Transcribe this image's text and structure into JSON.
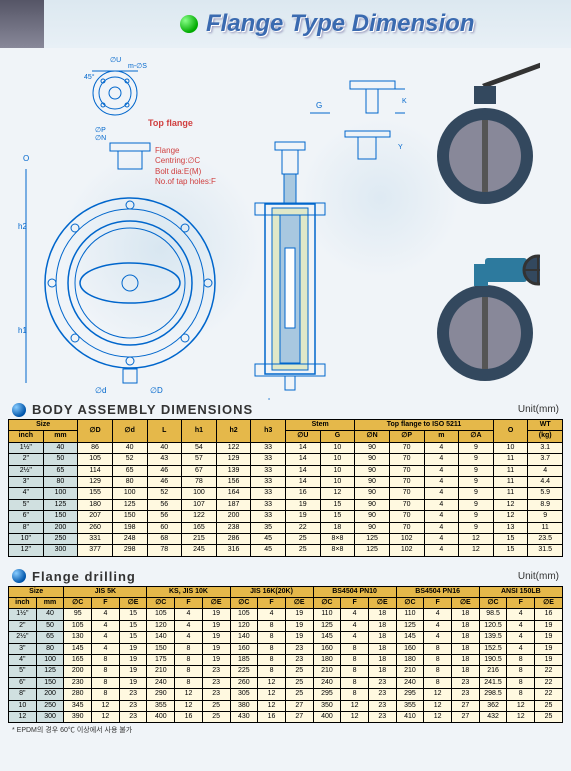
{
  "title": "Flange Type Dimension",
  "diagram_labels": {
    "top_flange": "Top flange",
    "flange": "Flange",
    "centring": "Centring:∅C",
    "bolt_dia": "Bolt dia:E(M)",
    "tap_holes": "No.of tap holes:F",
    "dims": [
      "∅U",
      "m-∅S",
      "45°",
      "∅P",
      "∅N",
      "∅d",
      "∅D",
      "h1",
      "h2",
      "O",
      "G",
      "K",
      "Y"
    ]
  },
  "body_section": {
    "title": "BODY  ASSEMBLY  DIMENSIONS",
    "unit": "Unit(mm)",
    "headers_top": [
      "Size",
      "",
      "∅D",
      "∅d",
      "L",
      "h1",
      "h2",
      "h3",
      "Stem",
      "",
      "Top flange to ISO 5211",
      "",
      "",
      "",
      "O",
      "WT"
    ],
    "headers_bot": [
      "inch",
      "mm",
      "",
      "",
      "",
      "",
      "",
      "",
      "∅U",
      "G",
      "∅N",
      "∅P",
      "m",
      "∅A",
      "",
      "(kg)"
    ],
    "rows": [
      [
        "1½\"",
        "40",
        "86",
        "40",
        "40",
        "54",
        "122",
        "33",
        "14",
        "10",
        "90",
        "70",
        "4",
        "9",
        "10",
        "3.1"
      ],
      [
        "2\"",
        "50",
        "105",
        "52",
        "43",
        "57",
        "129",
        "33",
        "14",
        "10",
        "90",
        "70",
        "4",
        "9",
        "11",
        "3.7"
      ],
      [
        "2½\"",
        "65",
        "114",
        "65",
        "46",
        "67",
        "139",
        "33",
        "14",
        "10",
        "90",
        "70",
        "4",
        "9",
        "11",
        "4"
      ],
      [
        "3\"",
        "80",
        "129",
        "80",
        "46",
        "78",
        "156",
        "33",
        "14",
        "10",
        "90",
        "70",
        "4",
        "9",
        "11",
        "4.4"
      ],
      [
        "4\"",
        "100",
        "155",
        "100",
        "52",
        "100",
        "164",
        "33",
        "16",
        "12",
        "90",
        "70",
        "4",
        "9",
        "11",
        "5.9"
      ],
      [
        "5\"",
        "125",
        "180",
        "125",
        "56",
        "107",
        "187",
        "33",
        "19",
        "15",
        "90",
        "70",
        "4",
        "9",
        "12",
        "8.9"
      ],
      [
        "6\"",
        "150",
        "207",
        "150",
        "56",
        "122",
        "200",
        "33",
        "19",
        "15",
        "90",
        "70",
        "4",
        "9",
        "12",
        "9"
      ],
      [
        "8\"",
        "200",
        "260",
        "198",
        "60",
        "165",
        "238",
        "35",
        "22",
        "18",
        "90",
        "70",
        "4",
        "9",
        "13",
        "11"
      ],
      [
        "10\"",
        "250",
        "331",
        "248",
        "68",
        "215",
        "286",
        "45",
        "25",
        "8×8",
        "125",
        "102",
        "4",
        "12",
        "15",
        "23.5"
      ],
      [
        "12\"",
        "300",
        "377",
        "298",
        "78",
        "245",
        "316",
        "45",
        "25",
        "8×8",
        "125",
        "102",
        "4",
        "12",
        "15",
        "31.5"
      ]
    ]
  },
  "drilling_section": {
    "title": "Flange  drilling",
    "unit": "Unit(mm)",
    "standards": [
      "JIS 5K",
      "KS, JIS 10K",
      "JIS 16K(20K)",
      "BS4504 PN10",
      "BS4504 PN16",
      "ANSI 150LB"
    ],
    "sub": [
      "∅C",
      "F",
      "∅E"
    ],
    "rows": [
      [
        "1½\"",
        "40",
        "95",
        "4",
        "15",
        "105",
        "4",
        "19",
        "105",
        "4",
        "19",
        "110",
        "4",
        "18",
        "110",
        "4",
        "18",
        "98.5",
        "4",
        "16"
      ],
      [
        "2\"",
        "50",
        "105",
        "4",
        "15",
        "120",
        "4",
        "19",
        "120",
        "8",
        "19",
        "125",
        "4",
        "18",
        "125",
        "4",
        "18",
        "120.5",
        "4",
        "19"
      ],
      [
        "2½\"",
        "65",
        "130",
        "4",
        "15",
        "140",
        "4",
        "19",
        "140",
        "8",
        "19",
        "145",
        "4",
        "18",
        "145",
        "4",
        "18",
        "139.5",
        "4",
        "19"
      ],
      [
        "3\"",
        "80",
        "145",
        "4",
        "19",
        "150",
        "8",
        "19",
        "160",
        "8",
        "23",
        "160",
        "8",
        "18",
        "160",
        "8",
        "18",
        "152.5",
        "4",
        "19"
      ],
      [
        "4\"",
        "100",
        "165",
        "8",
        "19",
        "175",
        "8",
        "19",
        "185",
        "8",
        "23",
        "180",
        "8",
        "18",
        "180",
        "8",
        "18",
        "190.5",
        "8",
        "19"
      ],
      [
        "5\"",
        "125",
        "200",
        "8",
        "19",
        "210",
        "8",
        "23",
        "225",
        "8",
        "25",
        "210",
        "8",
        "18",
        "210",
        "8",
        "18",
        "216",
        "8",
        "22"
      ],
      [
        "6\"",
        "150",
        "230",
        "8",
        "19",
        "240",
        "8",
        "23",
        "260",
        "12",
        "25",
        "240",
        "8",
        "23",
        "240",
        "8",
        "23",
        "241.5",
        "8",
        "22"
      ],
      [
        "8\"",
        "200",
        "280",
        "8",
        "23",
        "290",
        "12",
        "23",
        "305",
        "12",
        "25",
        "295",
        "8",
        "23",
        "295",
        "12",
        "23",
        "298.5",
        "8",
        "22"
      ],
      [
        "10",
        "250",
        "345",
        "12",
        "23",
        "355",
        "12",
        "25",
        "380",
        "12",
        "27",
        "350",
        "12",
        "23",
        "355",
        "12",
        "27",
        "362",
        "12",
        "25"
      ],
      [
        "12",
        "300",
        "390",
        "12",
        "23",
        "400",
        "16",
        "25",
        "430",
        "16",
        "27",
        "400",
        "12",
        "23",
        "410",
        "12",
        "27",
        "432",
        "12",
        "25"
      ]
    ]
  },
  "footnote": "* EPDM의 경우 60℃ 이상에서 사용 불가",
  "colors": {
    "header_bg": "#e5b84a",
    "cell_bg": "#fff9e0",
    "hilite": "#d0e0e0",
    "title_blue": "#3a6ab0"
  }
}
